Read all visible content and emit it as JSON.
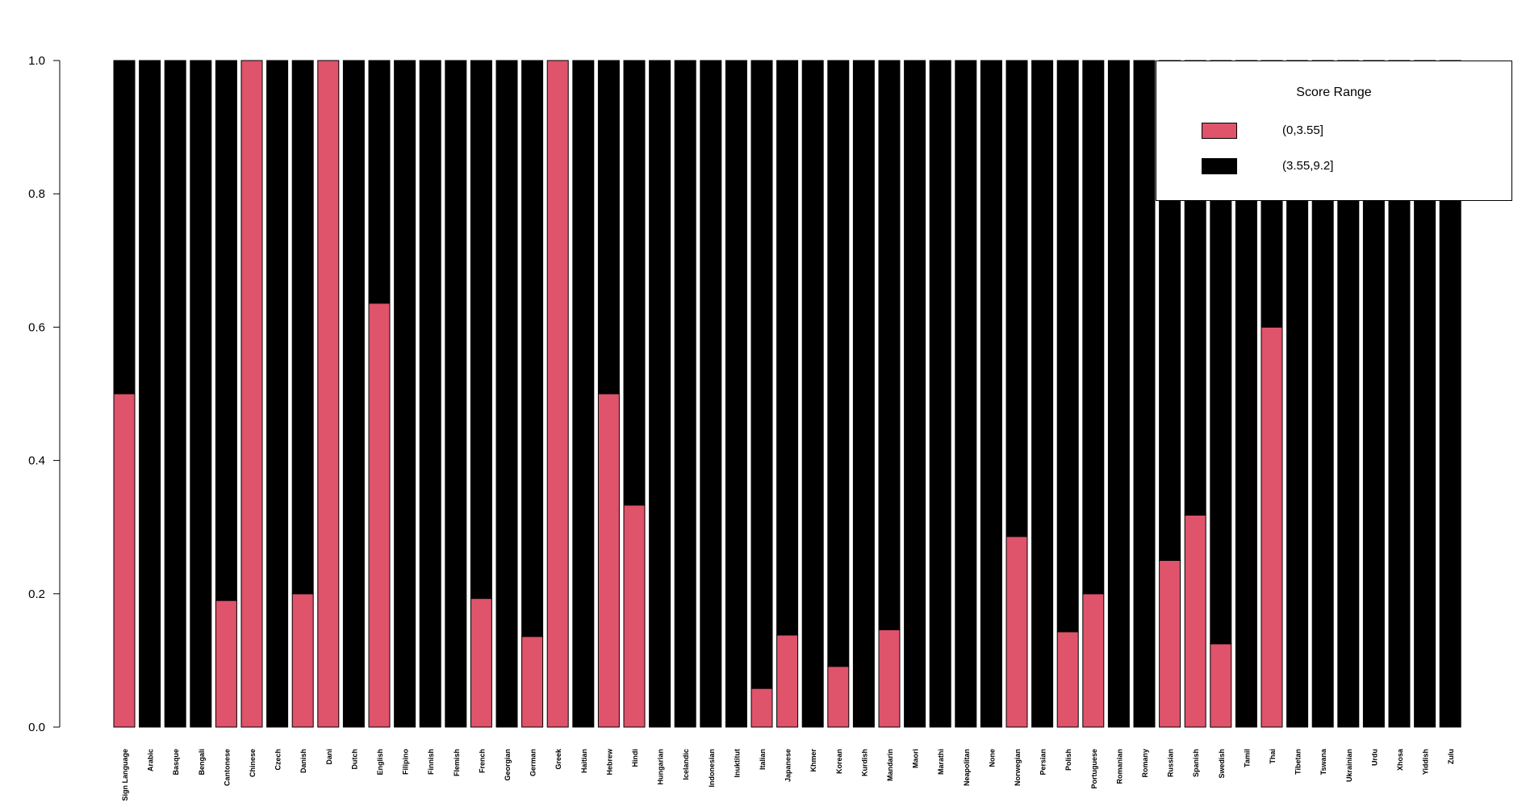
{
  "chart_data": {
    "type": "bar",
    "stacked": true,
    "categories": [
      "Sign Language",
      "Arabic",
      "Basque",
      "Bengali",
      "Cantonese",
      "Chinese",
      "Czech",
      "Danish",
      "Dani",
      "Dutch",
      "English",
      "Filipino",
      "Finnish",
      "Flemish",
      "French",
      "Georgian",
      "German",
      "Greek",
      "Haitian",
      "Hebrew",
      "Hindi",
      "Hungarian",
      "Icelandic",
      "Indonesian",
      "Inuktitut",
      "Italian",
      "Japanese",
      "Khmer",
      "Korean",
      "Kurdish",
      "Mandarin",
      "Maori",
      "Marathi",
      "Neapolitan",
      "None",
      "Norwegian",
      "Persian",
      "Polish",
      "Portuguese",
      "Romanian",
      "Romany",
      "Russian",
      "Spanish",
      "Swedish",
      "Tamil",
      "Thai",
      "Tibetan",
      "Tswana",
      "Ukrainian",
      "Urdu",
      "Xhosa",
      "Yiddish",
      "Zulu"
    ],
    "series": [
      {
        "name": "(0,3.55]",
        "color": "#df536b",
        "values": [
          0.5,
          0,
          0,
          0,
          0.19,
          1.0,
          0,
          0.2,
          1.0,
          0,
          0.636,
          0,
          0,
          0,
          0.193,
          0,
          0.136,
          1.0,
          0,
          0.5,
          0.333,
          0,
          0,
          0,
          0,
          0.058,
          0.138,
          0,
          0.091,
          0,
          0.146,
          0,
          0,
          0,
          0,
          0.286,
          0,
          0.143,
          0.2,
          0,
          0,
          0.25,
          0.318,
          0.125,
          0,
          0.6,
          0,
          0,
          0,
          0,
          0,
          0,
          0
        ]
      },
      {
        "name": "(3.55,9.2]",
        "color": "#000000",
        "values": [
          0.5,
          1.0,
          1.0,
          1.0,
          0.81,
          0,
          1.0,
          0.8,
          0,
          1.0,
          0.364,
          1.0,
          1.0,
          1.0,
          0.807,
          1.0,
          0.864,
          0,
          1.0,
          0.5,
          0.667,
          1.0,
          1.0,
          1.0,
          1.0,
          0.942,
          0.862,
          1.0,
          0.909,
          1.0,
          0.854,
          1.0,
          1.0,
          1.0,
          1.0,
          0.714,
          1.0,
          0.857,
          0.8,
          1.0,
          1.0,
          0.75,
          0.682,
          0.875,
          1.0,
          0.4,
          1.0,
          1.0,
          1.0,
          1.0,
          1.0,
          1.0,
          1.0
        ]
      }
    ],
    "yticks": [
      "0.0",
      "0.2",
      "0.4",
      "0.6",
      "0.8",
      "1.0"
    ],
    "ylim": [
      0,
      1
    ],
    "title": "",
    "xlabel": "",
    "ylabel": "",
    "grid": false,
    "legend": {
      "title": "Score Range",
      "placement": "top-right"
    }
  }
}
